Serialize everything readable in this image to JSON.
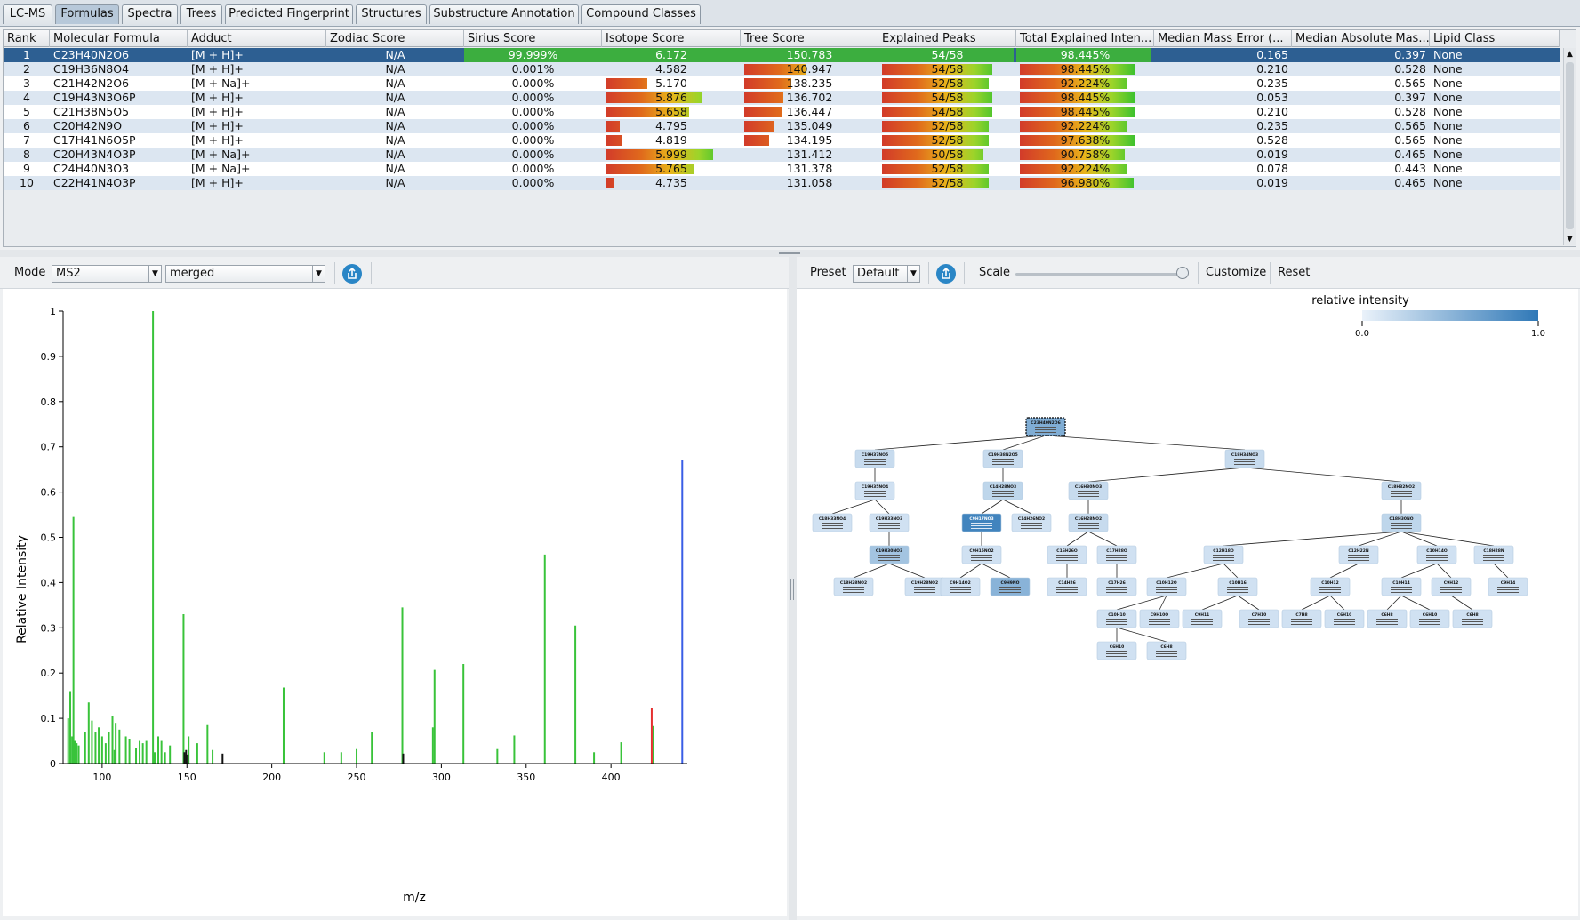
{
  "tabs": [
    {
      "label": "LC-MS",
      "active": false
    },
    {
      "label": "Formulas",
      "active": true
    },
    {
      "label": "Spectra",
      "active": false
    },
    {
      "label": "Trees",
      "active": false
    },
    {
      "label": "Predicted Fingerprint",
      "active": false
    },
    {
      "label": "Structures",
      "active": false
    },
    {
      "label": "Substructure Annotation",
      "active": false
    },
    {
      "label": "Compound Classes",
      "active": false
    }
  ],
  "table": {
    "columns": [
      "Rank",
      "Molecular Formula",
      "Adduct",
      "Zodiac Score",
      "Sirius Score",
      "Isotope Score",
      "Tree Score",
      "Explained Peaks",
      "Total Explained Inten...",
      "Median Mass Error (...",
      "Median Absolute Mas...",
      "Lipid Class"
    ],
    "rows": [
      {
        "rank": "1",
        "formula": "C23H40N2O6",
        "adduct": "[M + H]+",
        "zodiac": "N/A",
        "sirius": "99.999%",
        "isotope": "6.172",
        "tree": "150.783",
        "peaks": "54/58",
        "intensity": "98.445%",
        "mme": "0.165",
        "mame": "0.397",
        "lipid": "None",
        "isotope_frac": 1.0,
        "tree_frac": 1.0,
        "peaks_frac": 0.93,
        "intensity_frac": 0.98
      },
      {
        "rank": "2",
        "formula": "C19H36N8O4",
        "adduct": "[M + H]+",
        "zodiac": "N/A",
        "sirius": "0.001%",
        "isotope": "4.582",
        "tree": "140.947",
        "peaks": "54/58",
        "intensity": "98.445%",
        "mme": "0.210",
        "mame": "0.528",
        "lipid": "None",
        "isotope_frac": 0.0,
        "tree_frac": 0.53,
        "peaks_frac": 0.93,
        "intensity_frac": 0.98
      },
      {
        "rank": "3",
        "formula": "C21H42N2O6",
        "adduct": "[M + Na]+",
        "zodiac": "N/A",
        "sirius": "0.000%",
        "isotope": "5.170",
        "tree": "138.235",
        "peaks": "52/58",
        "intensity": "92.224%",
        "mme": "0.235",
        "mame": "0.565",
        "lipid": "None",
        "isotope_frac": 0.35,
        "tree_frac": 0.4,
        "peaks_frac": 0.9,
        "intensity_frac": 0.91
      },
      {
        "rank": "4",
        "formula": "C19H43N3O6P",
        "adduct": "[M + H]+",
        "zodiac": "N/A",
        "sirius": "0.000%",
        "isotope": "5.876",
        "tree": "136.702",
        "peaks": "54/58",
        "intensity": "98.445%",
        "mme": "0.053",
        "mame": "0.397",
        "lipid": "None",
        "isotope_frac": 0.81,
        "tree_frac": 0.33,
        "peaks_frac": 0.93,
        "intensity_frac": 0.98
      },
      {
        "rank": "5",
        "formula": "C21H38N5O5",
        "adduct": "[M + H]+",
        "zodiac": "N/A",
        "sirius": "0.000%",
        "isotope": "5.658",
        "tree": "136.447",
        "peaks": "54/58",
        "intensity": "98.445%",
        "mme": "0.210",
        "mame": "0.528",
        "lipid": "None",
        "isotope_frac": 0.7,
        "tree_frac": 0.32,
        "peaks_frac": 0.93,
        "intensity_frac": 0.98
      },
      {
        "rank": "6",
        "formula": "C20H42N9O",
        "adduct": "[M + H]+",
        "zodiac": "N/A",
        "sirius": "0.000%",
        "isotope": "4.795",
        "tree": "135.049",
        "peaks": "52/58",
        "intensity": "92.224%",
        "mme": "0.235",
        "mame": "0.565",
        "lipid": "None",
        "isotope_frac": 0.12,
        "tree_frac": 0.25,
        "peaks_frac": 0.9,
        "intensity_frac": 0.91
      },
      {
        "rank": "7",
        "formula": "C17H41N6O5P",
        "adduct": "[M + H]+",
        "zodiac": "N/A",
        "sirius": "0.000%",
        "isotope": "4.819",
        "tree": "134.195",
        "peaks": "52/58",
        "intensity": "97.638%",
        "mme": "0.528",
        "mame": "0.565",
        "lipid": "None",
        "isotope_frac": 0.14,
        "tree_frac": 0.21,
        "peaks_frac": 0.9,
        "intensity_frac": 0.97
      },
      {
        "rank": "8",
        "formula": "C20H43N4O3P",
        "adduct": "[M + Na]+",
        "zodiac": "N/A",
        "sirius": "0.000%",
        "isotope": "5.999",
        "tree": "131.412",
        "peaks": "50/58",
        "intensity": "90.758%",
        "mme": "0.019",
        "mame": "0.465",
        "lipid": "None",
        "isotope_frac": 0.9,
        "tree_frac": 0.0,
        "peaks_frac": 0.86,
        "intensity_frac": 0.89
      },
      {
        "rank": "9",
        "formula": "C24H40N3O3",
        "adduct": "[M + Na]+",
        "zodiac": "N/A",
        "sirius": "0.000%",
        "isotope": "5.765",
        "tree": "131.378",
        "peaks": "52/58",
        "intensity": "92.224%",
        "mme": "0.078",
        "mame": "0.443",
        "lipid": "None",
        "isotope_frac": 0.74,
        "tree_frac": 0.0,
        "peaks_frac": 0.9,
        "intensity_frac": 0.91
      },
      {
        "rank": "10",
        "formula": "C22H41N4O3P",
        "adduct": "[M + H]+",
        "zodiac": "N/A",
        "sirius": "0.000%",
        "isotope": "4.735",
        "tree": "131.058",
        "peaks": "52/58",
        "intensity": "96.980%",
        "mme": "0.019",
        "mame": "0.465",
        "lipid": "None",
        "isotope_frac": 0.07,
        "tree_frac": 0.0,
        "peaks_frac": 0.9,
        "intensity_frac": 0.96
      }
    ]
  },
  "spectrum_toolbar": {
    "mode_label": "Mode",
    "mode_value": "MS2",
    "merge_value": "merged",
    "export_icon": "export-icon"
  },
  "tree_toolbar": {
    "preset_label": "Preset",
    "preset_value": "Default",
    "export_icon": "export-icon",
    "scale_label": "Scale",
    "scale_level": 0.98,
    "customize_label": "Customize",
    "reset_label": "Reset"
  },
  "colors": {
    "selected_row": "#2d5f92",
    "peak_green": "#39c33a",
    "peak_red": "#e53030",
    "peak_blue": "#3a5ee6",
    "peak_black": "#111111",
    "node_light": "#cfe0f1",
    "node_dark": "#2f78b7"
  },
  "chart_data": {
    "type": "bar",
    "title": "",
    "xlabel": "m/z",
    "ylabel": "Relative Intensity",
    "xlim": [
      77,
      445
    ],
    "ylim": [
      0,
      1.0
    ],
    "xticks": [
      100,
      150,
      200,
      250,
      300,
      350,
      400
    ],
    "yticks": [
      0.0,
      0.1,
      0.2,
      0.3,
      0.4,
      0.5,
      0.6,
      0.7,
      0.8,
      0.9,
      1.0
    ],
    "series": [
      {
        "color": "green",
        "mz": [
          80.0,
          81.2,
          82.3,
          83.1,
          84.0,
          85.0,
          86.2,
          90.0,
          92.1,
          94.0,
          96.1,
          98.0,
          100.0,
          102.1,
          104.0,
          106.1,
          107.3,
          108.0,
          110.2,
          114.0,
          116.1,
          120.0,
          122.1,
          124.0,
          126.1,
          130.0,
          131.0,
          133.1,
          135.0,
          137.1,
          140.0,
          148.0,
          149.3,
          151.0,
          156.1,
          162.1,
          165.1,
          207.0,
          231.0,
          241.0,
          250.0,
          259.0,
          277.0,
          295.0,
          296.0,
          313.0,
          333.0,
          343.0,
          361.0,
          379.0,
          390.0,
          406.0,
          425.0
        ],
        "values": [
          0.1,
          0.16,
          0.06,
          0.545,
          0.05,
          0.045,
          0.04,
          0.07,
          0.135,
          0.095,
          0.07,
          0.08,
          0.06,
          0.045,
          0.07,
          0.105,
          0.03,
          0.09,
          0.075,
          0.06,
          0.055,
          0.035,
          0.05,
          0.045,
          0.05,
          1.0,
          0.025,
          0.06,
          0.05,
          0.025,
          0.04,
          0.33,
          0.02,
          0.06,
          0.045,
          0.085,
          0.03,
          0.168,
          0.025,
          0.025,
          0.032,
          0.07,
          0.345,
          0.08,
          0.207,
          0.22,
          0.032,
          0.062,
          0.462,
          0.305,
          0.025,
          0.047,
          0.083
        ]
      },
      {
        "color": "black",
        "mz": [
          148.5,
          149.5,
          150.5,
          171.0,
          277.5
        ],
        "values": [
          0.025,
          0.03,
          0.02,
          0.022,
          0.022
        ]
      },
      {
        "color": "red",
        "mz": [
          424.0
        ],
        "values": [
          0.123
        ]
      },
      {
        "color": "blue",
        "mz": [
          442.0
        ],
        "values": [
          0.672
        ]
      }
    ]
  },
  "tree": {
    "legend_title": "relative intensity",
    "legend_min": "0.0",
    "legend_max": "1.0",
    "nodes": [
      {
        "id": "root",
        "label": "C23H40N2O6",
        "parent": null,
        "level": 0,
        "col": 0.3,
        "shade": 0.55
      },
      {
        "id": "n1",
        "label": "C19H37NO5",
        "parent": "root",
        "level": 1,
        "col": 0.06,
        "shade": 0.15
      },
      {
        "id": "n2",
        "label": "C19H38N2O5",
        "parent": "root",
        "level": 1,
        "col": 0.24,
        "shade": 0.15
      },
      {
        "id": "n3",
        "label": "C18H34NO3",
        "parent": "root",
        "level": 1,
        "col": 0.58,
        "shade": 0.15
      },
      {
        "id": "n4",
        "label": "C19H35NO4",
        "parent": "n1",
        "level": 2,
        "col": 0.06,
        "shade": 0.1
      },
      {
        "id": "n5",
        "label": "C14H28NO3",
        "parent": "n2",
        "level": 2,
        "col": 0.24,
        "shade": 0.2
      },
      {
        "id": "n6",
        "label": "C16H30NO3",
        "parent": "n3",
        "level": 2,
        "col": 0.36,
        "shade": 0.15
      },
      {
        "id": "n7",
        "label": "C18H32NO2",
        "parent": "n3",
        "level": 2,
        "col": 0.8,
        "shade": 0.15
      },
      {
        "id": "n8",
        "label": "C18H33NO4",
        "parent": "n4",
        "level": 3,
        "col": 0.0,
        "shade": 0.1
      },
      {
        "id": "n9",
        "label": "C19H33NO3",
        "parent": "n4",
        "level": 3,
        "col": 0.08,
        "shade": 0.1
      },
      {
        "id": "n10",
        "label": "C9H17NO3",
        "parent": "n5",
        "level": 3,
        "col": 0.21,
        "shade": 0.9
      },
      {
        "id": "n11",
        "label": "C14H26NO2",
        "parent": "n5",
        "level": 3,
        "col": 0.28,
        "shade": 0.1
      },
      {
        "id": "n12",
        "label": "C16H28NO2",
        "parent": "n6",
        "level": 3,
        "col": 0.36,
        "shade": 0.15
      },
      {
        "id": "n13",
        "label": "C18H30NO",
        "parent": "n7",
        "level": 3,
        "col": 0.8,
        "shade": 0.2
      },
      {
        "id": "n14",
        "label": "C19H30NO3",
        "parent": "n9",
        "level": 4,
        "col": 0.08,
        "shade": 0.35
      },
      {
        "id": "n15",
        "label": "C9H15NO2",
        "parent": "n10",
        "level": 4,
        "col": 0.21,
        "shade": 0.1
      },
      {
        "id": "n16",
        "label": "C16H26O",
        "parent": "n12",
        "level": 4,
        "col": 0.33,
        "shade": 0.1
      },
      {
        "id": "n17",
        "label": "C17H28O",
        "parent": "n12",
        "level": 4,
        "col": 0.4,
        "shade": 0.1
      },
      {
        "id": "n18",
        "label": "C12H18O",
        "parent": "n13",
        "level": 4,
        "col": 0.55,
        "shade": 0.1
      },
      {
        "id": "n19",
        "label": "C12H22N",
        "parent": "n13",
        "level": 4,
        "col": 0.74,
        "shade": 0.1
      },
      {
        "id": "n20",
        "label": "C10H14O",
        "parent": "n13",
        "level": 4,
        "col": 0.85,
        "shade": 0.1
      },
      {
        "id": "n21",
        "label": "C18H28N",
        "parent": "n13",
        "level": 4,
        "col": 0.93,
        "shade": 0.1
      },
      {
        "id": "n22",
        "label": "C18H28NO2",
        "parent": "n14",
        "level": 5,
        "col": 0.03,
        "shade": 0.1
      },
      {
        "id": "n23",
        "label": "C19H28NO2",
        "parent": "n14",
        "level": 5,
        "col": 0.13,
        "shade": 0.1
      },
      {
        "id": "n24",
        "label": "C9H14O2",
        "parent": "n15",
        "level": 5,
        "col": 0.18,
        "shade": 0.1
      },
      {
        "id": "n25",
        "label": "C9H9NO",
        "parent": "n15",
        "level": 5,
        "col": 0.25,
        "shade": 0.5
      },
      {
        "id": "n26",
        "label": "C14H26",
        "parent": "n16",
        "level": 5,
        "col": 0.33,
        "shade": 0.1
      },
      {
        "id": "n27",
        "label": "C17H26",
        "parent": "n17",
        "level": 5,
        "col": 0.4,
        "shade": 0.1
      },
      {
        "id": "n28",
        "label": "C10H12O",
        "parent": "n18",
        "level": 5,
        "col": 0.47,
        "shade": 0.1
      },
      {
        "id": "n29",
        "label": "C10H16",
        "parent": "n18",
        "level": 5,
        "col": 0.57,
        "shade": 0.1
      },
      {
        "id": "n30",
        "label": "C10H12",
        "parent": "n19",
        "level": 5,
        "col": 0.7,
        "shade": 0.1
      },
      {
        "id": "n31",
        "label": "C10H14",
        "parent": "n20",
        "level": 5,
        "col": 0.8,
        "shade": 0.1
      },
      {
        "id": "n32",
        "label": "C9H12",
        "parent": "n20",
        "level": 5,
        "col": 0.87,
        "shade": 0.1
      },
      {
        "id": "n33",
        "label": "C9H14",
        "parent": "n21",
        "level": 5,
        "col": 0.95,
        "shade": 0.1
      },
      {
        "id": "n34",
        "label": "C10H10",
        "parent": "n28",
        "level": 6,
        "col": 0.4,
        "shade": 0.1
      },
      {
        "id": "n35",
        "label": "C9H10O",
        "parent": "n28",
        "level": 6,
        "col": 0.46,
        "shade": 0.1
      },
      {
        "id": "n36",
        "label": "C9H11",
        "parent": "n29",
        "level": 6,
        "col": 0.52,
        "shade": 0.1
      },
      {
        "id": "n37",
        "label": "C7H10",
        "parent": "n29",
        "level": 6,
        "col": 0.6,
        "shade": 0.1
      },
      {
        "id": "n38",
        "label": "C7H8",
        "parent": "n30",
        "level": 6,
        "col": 0.66,
        "shade": 0.1
      },
      {
        "id": "n39",
        "label": "C6H10",
        "parent": "n30",
        "level": 6,
        "col": 0.72,
        "shade": 0.1
      },
      {
        "id": "n40",
        "label": "C6H8",
        "parent": "n31",
        "level": 6,
        "col": 0.78,
        "shade": 0.1
      },
      {
        "id": "n41",
        "label": "C6H10",
        "parent": "n31",
        "level": 6,
        "col": 0.84,
        "shade": 0.1
      },
      {
        "id": "n42",
        "label": "C6H8",
        "parent": "n32",
        "level": 6,
        "col": 0.9,
        "shade": 0.1
      },
      {
        "id": "n43",
        "label": "C6H10",
        "parent": "n34",
        "level": 7,
        "col": 0.4,
        "shade": 0.1
      },
      {
        "id": "n44",
        "label": "C6H8",
        "parent": "n34",
        "level": 7,
        "col": 0.47,
        "shade": 0.1
      }
    ]
  }
}
